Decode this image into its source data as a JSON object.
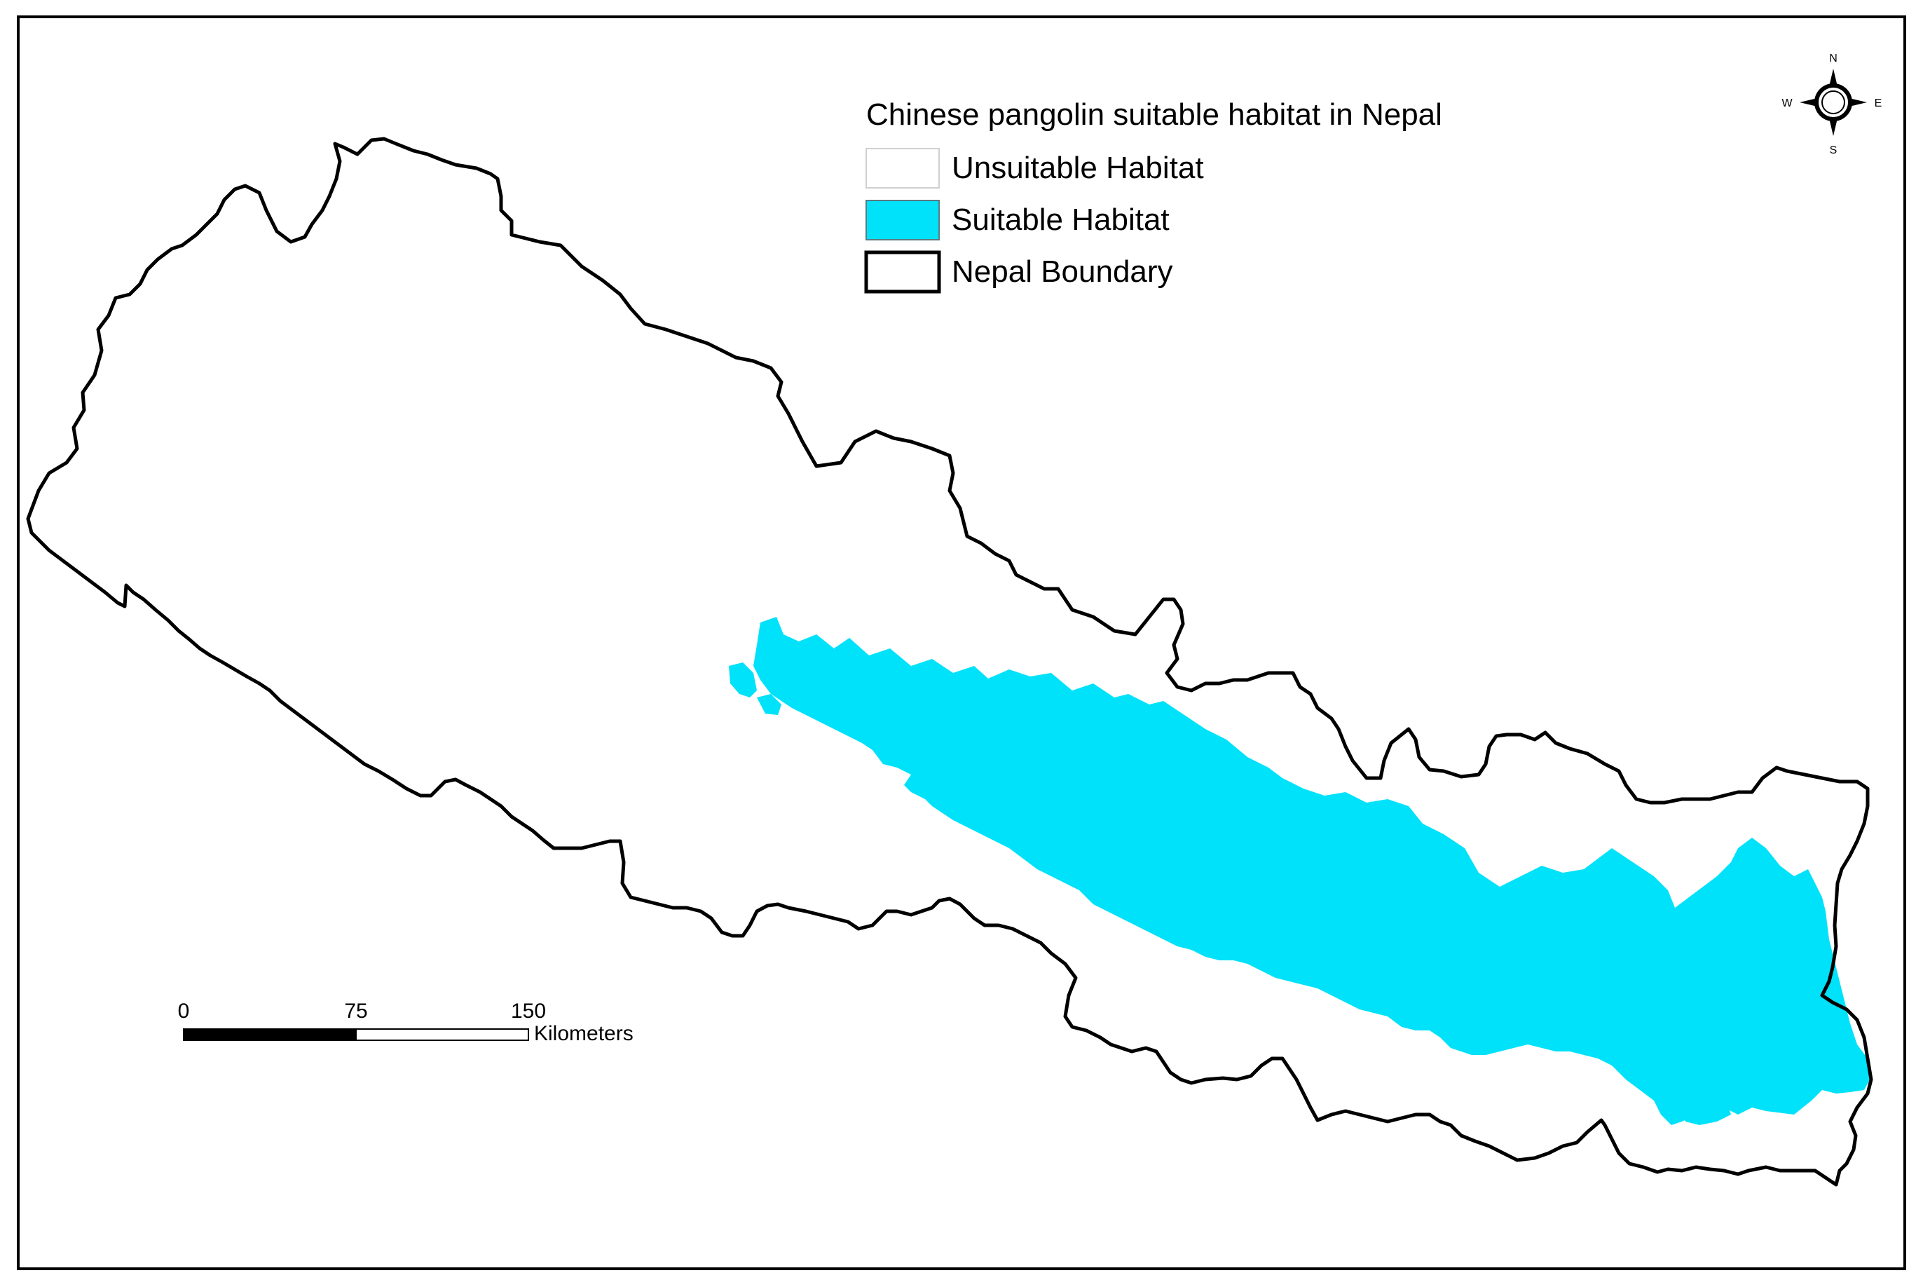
{
  "legend": {
    "title": "Chinese pangolin suitable habitat in Nepal",
    "items": [
      {
        "label": "Unsuitable Habitat",
        "color": "#ffffff"
      },
      {
        "label": "Suitable Habitat",
        "color": "#00e1fa"
      },
      {
        "label": "Nepal Boundary",
        "color": "#000000"
      }
    ]
  },
  "north_arrow": {
    "n": "N",
    "s": "S",
    "e": "E",
    "w": "W"
  },
  "scale_bar": {
    "ticks": [
      "0",
      "75",
      "150"
    ],
    "unit": "Kilometers"
  },
  "colors": {
    "habitat": "#00e1fa",
    "boundary": "#000000",
    "frame": "#000000",
    "background": "#ffffff"
  }
}
